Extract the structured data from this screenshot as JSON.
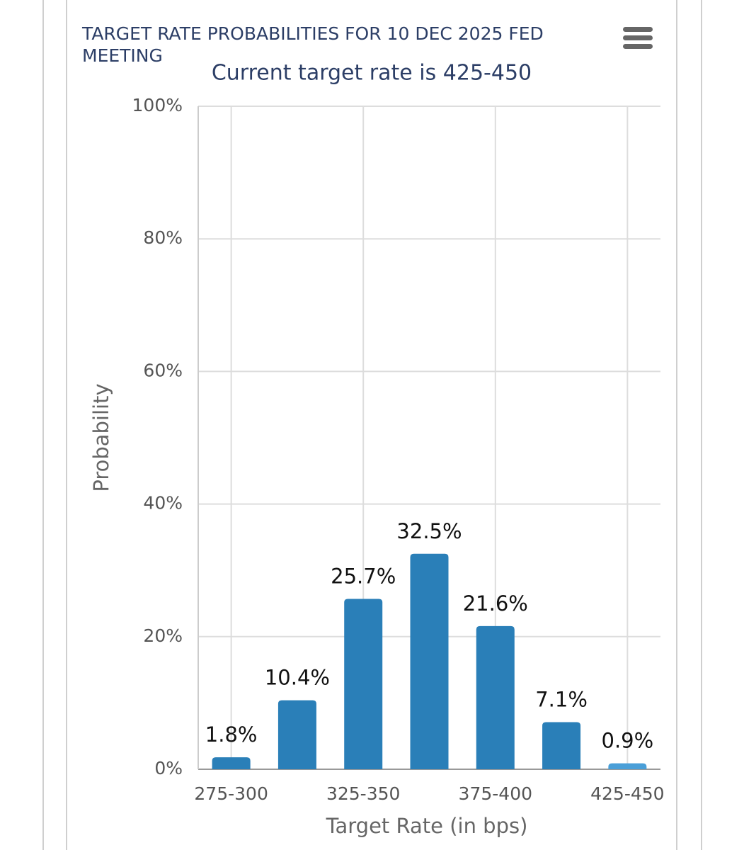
{
  "chart_data": {
    "type": "bar",
    "title": "TARGET RATE PROBABILITIES FOR 10 DEC 2025 FED MEETING",
    "subtitle": "Current target rate is 425-450",
    "x_label": "Target Rate (in bps)",
    "y_label": "Probability",
    "categories": [
      "275-300",
      null,
      "325-350",
      null,
      "375-400",
      null,
      "425-450"
    ],
    "values": [
      1.8,
      10.4,
      25.7,
      32.5,
      21.6,
      7.1,
      0.9
    ],
    "value_labels": [
      "1.8%",
      "10.4%",
      "25.7%",
      "32.5%",
      "21.6%",
      "7.1%",
      "0.9%"
    ],
    "colors": [
      "#2a7fb8",
      "#2a7fb8",
      "#2a7fb8",
      "#2a7fb8",
      "#2a7fb8",
      "#2a7fb8",
      "#4a9fd8"
    ],
    "ylim": [
      0,
      100
    ],
    "yticks": [
      {
        "value": 0,
        "label": "0%"
      },
      {
        "value": 20,
        "label": "20%"
      },
      {
        "value": 40,
        "label": "40%"
      },
      {
        "value": 60,
        "label": "60%"
      },
      {
        "value": 80,
        "label": "80%"
      },
      {
        "value": 100,
        "label": "100%"
      }
    ],
    "grid": true
  }
}
